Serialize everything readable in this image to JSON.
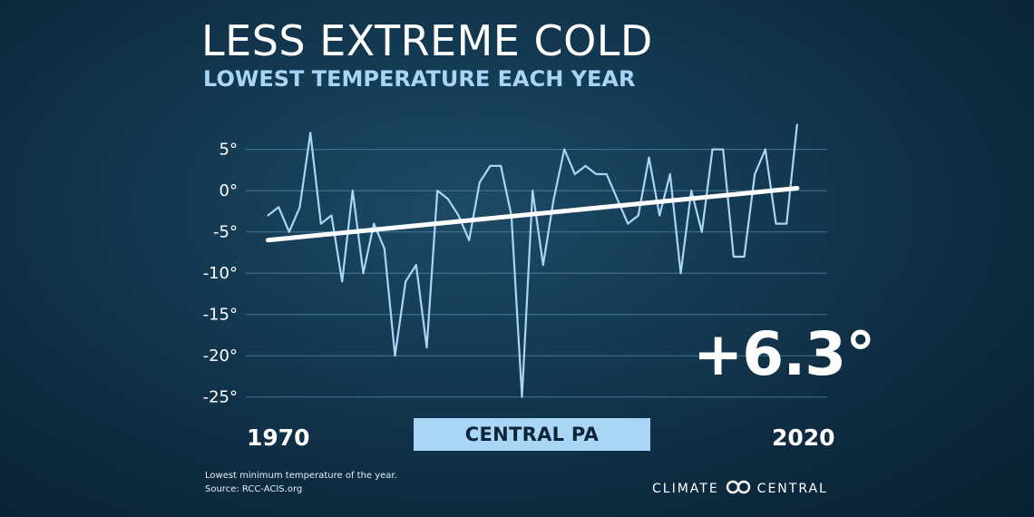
{
  "header": {
    "title": "LESS EXTREME COLD",
    "subtitle": "LOWEST TEMPERATURE EACH YEAR"
  },
  "colors": {
    "line": "#a9d6f7",
    "trend": "#ffffff",
    "grid": "#5b8fae",
    "region_box": "#a9d6f7"
  },
  "chart_data": {
    "type": "line",
    "x_start_label": "1970",
    "x_end_label": "2020",
    "x": [
      1970,
      1971,
      1972,
      1973,
      1974,
      1975,
      1976,
      1977,
      1978,
      1979,
      1980,
      1981,
      1982,
      1983,
      1984,
      1985,
      1986,
      1987,
      1988,
      1989,
      1990,
      1991,
      1992,
      1993,
      1994,
      1995,
      1996,
      1997,
      1998,
      1999,
      2000,
      2001,
      2002,
      2003,
      2004,
      2005,
      2006,
      2007,
      2008,
      2009,
      2010,
      2011,
      2012,
      2013,
      2014,
      2015,
      2016,
      2017,
      2018,
      2019,
      2020,
      2021
    ],
    "series": [
      {
        "values": [
          -3,
          -2,
          -5,
          -2,
          7,
          -4,
          -3,
          -11,
          0,
          -10,
          -4,
          -7,
          -20,
          -11,
          -9,
          -19,
          0,
          -1,
          -3,
          -6,
          1,
          3,
          3,
          -3,
          -25,
          0,
          -9,
          -1,
          5,
          2,
          3,
          2,
          2,
          -1,
          -4,
          -3,
          4,
          -3,
          2,
          -10,
          0,
          -5,
          5,
          5,
          -8,
          -8,
          2,
          5,
          -4,
          -4,
          8,
          null
        ]
      }
    ],
    "trend": {
      "start_year": 1970,
      "start_value": -6.0,
      "end_year": 2020,
      "end_value": 0.3
    },
    "yticks": [
      5,
      0,
      -5,
      -10,
      -15,
      -20,
      -25
    ],
    "ytick_labels": [
      "5°",
      "0°",
      "-5°",
      "-10°",
      "-15°",
      "-20°",
      "-25°"
    ],
    "ylim": [
      -27,
      9
    ],
    "grid": true,
    "region": "CENTRAL PA",
    "change_label": "+6.3°"
  },
  "footer": {
    "note_line1": "Lowest minimum temperature of the year.",
    "note_line2": "Source: RCC-ACIS.org",
    "brand_name_left": "CLIMATE",
    "brand_name_right": "CENTRAL",
    "brand_icon": "infinity-loops-icon"
  }
}
